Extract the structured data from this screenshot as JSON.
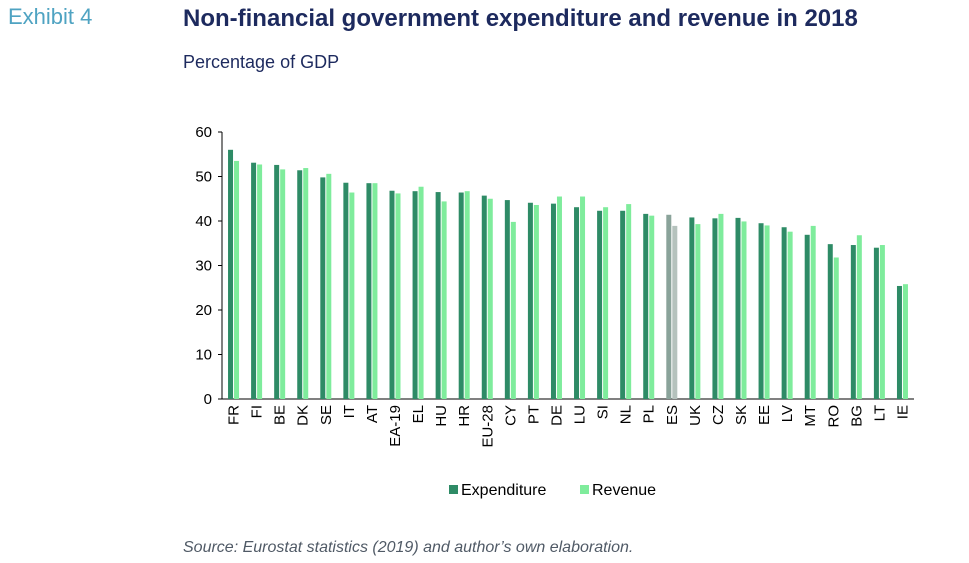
{
  "header": {
    "exhibit": "Exhibit 4",
    "title": "Non-financial government expenditure and revenue in 2018",
    "subtitle": "Percentage of GDP"
  },
  "footer": {
    "source": "Source: Eurostat statistics (2019) and author’s own elaboration."
  },
  "colors": {
    "expenditure": "#2e8b66",
    "revenue": "#7fec9c",
    "highlight_expenditure": "#8aa39a",
    "highlight_revenue": "#b5c2bd",
    "axis": "#000000"
  },
  "chart_data": {
    "type": "bar",
    "categories": [
      "FR",
      "FI",
      "BE",
      "DK",
      "SE",
      "IT",
      "AT",
      "EA-19",
      "EL",
      "HU",
      "HR",
      "EU-28",
      "CY",
      "PT",
      "DE",
      "LU",
      "SI",
      "NL",
      "PL",
      "ES",
      "UK",
      "CZ",
      "SK",
      "EE",
      "LV",
      "MT",
      "RO",
      "BG",
      "LT",
      "IE"
    ],
    "series": [
      {
        "name": "Expenditure",
        "values": [
          56.0,
          53.1,
          52.6,
          51.4,
          49.8,
          48.6,
          48.5,
          46.8,
          46.7,
          46.5,
          46.4,
          45.7,
          44.7,
          44.1,
          43.9,
          43.1,
          42.3,
          42.3,
          41.6,
          41.4,
          40.8,
          40.6,
          40.7,
          39.5,
          38.6,
          36.9,
          34.8,
          34.6,
          34.0,
          25.4
        ]
      },
      {
        "name": "Revenue",
        "values": [
          53.5,
          52.7,
          51.6,
          51.9,
          50.6,
          46.4,
          48.5,
          46.2,
          47.7,
          44.4,
          46.7,
          45.0,
          39.8,
          43.6,
          45.5,
          45.5,
          43.1,
          43.8,
          41.2,
          38.9,
          39.3,
          41.6,
          39.9,
          39.0,
          37.6,
          38.9,
          31.8,
          36.8,
          34.6,
          25.8
        ]
      }
    ],
    "highlight_category": "ES",
    "ylim": [
      0,
      60
    ],
    "yticks": [
      0,
      10,
      20,
      30,
      40,
      50,
      60
    ],
    "legend_position": "bottom-center",
    "grid": false
  }
}
